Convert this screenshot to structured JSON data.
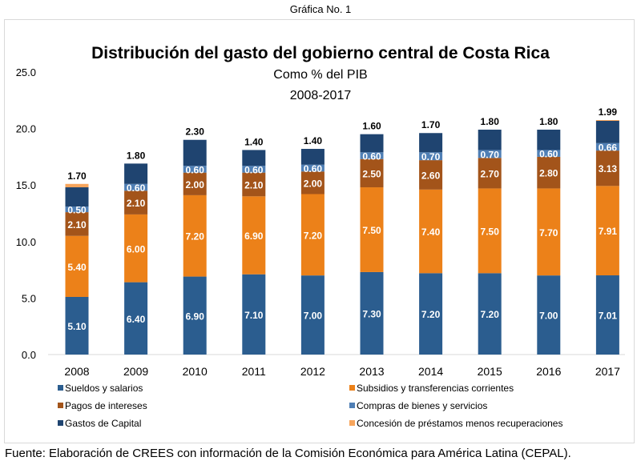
{
  "caption": "Gráfica No. 1",
  "source": "Fuente: Elaboración de CREES con información de la Comisión Económica para América Latina (CEPAL).",
  "chart_data": {
    "type": "bar",
    "stacked": true,
    "title": "Distribución del gasto del gobierno central de Costa Rica",
    "subtitle": "Como % del PIB",
    "subtitle2": "2008-2017",
    "xlabel": "",
    "ylabel": "",
    "ylim": [
      0,
      25
    ],
    "yticks": [
      "0.0",
      "5.0",
      "10.0",
      "15.0",
      "20.0",
      "25.0"
    ],
    "grid": false,
    "legend_position": "bottom",
    "categories": [
      "2008",
      "2009",
      "2010",
      "2011",
      "2012",
      "2013",
      "2014",
      "2015",
      "2016",
      "2017"
    ],
    "series": [
      {
        "name": "Sueldos y salarios",
        "color": "#2b5d8f",
        "label_color": "#ffffff",
        "values": [
          5.1,
          6.4,
          6.9,
          7.1,
          7.0,
          7.3,
          7.2,
          7.2,
          7.0,
          7.01
        ],
        "labels": [
          "5.10",
          "6.40",
          "6.90",
          "7.10",
          "7.00",
          "7.30",
          "7.20",
          "7.20",
          "7.00",
          "7.01"
        ]
      },
      {
        "name": "Subsidios y transferencias corrientes",
        "color": "#ec8119",
        "label_color": "#ffffff",
        "values": [
          5.4,
          6.0,
          7.2,
          6.9,
          7.2,
          7.5,
          7.4,
          7.5,
          7.7,
          7.91
        ],
        "labels": [
          "5.40",
          "6.00",
          "7.20",
          "6.90",
          "7.20",
          "7.50",
          "7.40",
          "7.50",
          "7.70",
          "7.91"
        ]
      },
      {
        "name": "Pagos de intereses",
        "color": "#a3541a",
        "label_color": "#ffffff",
        "values": [
          2.1,
          2.1,
          2.0,
          2.1,
          2.0,
          2.5,
          2.6,
          2.7,
          2.8,
          3.13
        ],
        "labels": [
          "2.10",
          "2.10",
          "2.00",
          "2.10",
          "2.00",
          "2.50",
          "2.60",
          "2.70",
          "2.80",
          "3.13"
        ]
      },
      {
        "name": "Compras de bienes y servicios",
        "color": "#4f7fb5",
        "label_color": "#ffffff",
        "values": [
          0.5,
          0.6,
          0.6,
          0.6,
          0.6,
          0.6,
          0.7,
          0.7,
          0.6,
          0.66
        ],
        "labels": [
          "0.50",
          "0.60",
          "0.60",
          "0.60",
          "0.60",
          "0.60",
          "0.70",
          "0.70",
          "0.60",
          "0.66"
        ]
      },
      {
        "name": "Gastos de Capital",
        "color": "#1f4470",
        "label_color": "#000000",
        "values": [
          1.7,
          1.8,
          2.3,
          1.4,
          1.4,
          1.6,
          1.7,
          1.8,
          1.8,
          1.99
        ],
        "labels": [
          "1.70",
          "1.80",
          "2.30",
          "1.40",
          "1.40",
          "1.60",
          "1.70",
          "1.80",
          "1.80",
          "1.99"
        ]
      },
      {
        "name": "Concesión de préstamos menos recuperaciones",
        "color": "#f7a55c",
        "label_color": "#000000",
        "values": [
          0.3,
          0,
          0,
          0,
          0,
          0,
          0,
          0,
          0,
          0.05
        ],
        "labels": [
          "",
          "",
          "",
          "",
          "",
          "",
          "",
          "",
          "",
          ""
        ]
      }
    ]
  }
}
